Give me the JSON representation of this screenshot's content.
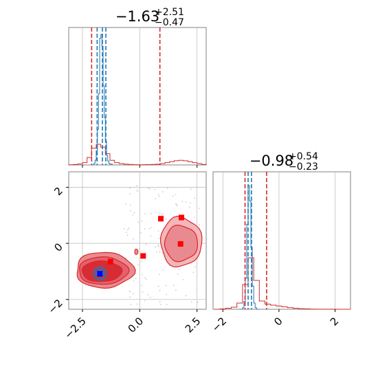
{
  "colors": {
    "red": "#d62728",
    "red_fill": "#e98a90",
    "red_dark_fill": "#d62d35",
    "red_marker": "#ff0000",
    "blue": "#1f77b4",
    "blue_marker": "#0000ff",
    "grid": "#bfbfbf",
    "frame": "#808080",
    "scatter": "#cccccc"
  },
  "chart_data": [
    {
      "type": "histogram",
      "panel": "top-left marginal (parameter 1)",
      "title": {
        "main": "−1.63",
        "sup": "+2.51",
        "sub": "−0.47"
      },
      "xlim": [
        -3.1,
        2.9
      ],
      "grid": true,
      "vlines": {
        "red_dashed": [
          -2.1,
          0.88
        ],
        "blue_dashed": [
          -1.86,
          -1.63,
          -1.48
        ]
      },
      "series": [
        {
          "color": "red",
          "step_x": [
            -3.1,
            -2.9,
            -2.7,
            -2.5,
            -2.3,
            -2.1,
            -1.9,
            -1.7,
            -1.5,
            -1.3,
            -1.1,
            -0.9,
            -0.7,
            -0.5,
            -0.3,
            -0.1,
            0.1,
            0.3,
            0.5,
            0.7,
            0.9,
            1.1,
            1.3,
            1.5,
            1.7,
            1.9,
            2.1,
            2.3,
            2.5,
            2.7,
            2.9
          ],
          "counts": [
            0.2,
            0.5,
            1.0,
            2.5,
            8.0,
            18.0,
            22.0,
            19.0,
            12.0,
            5.0,
            2.5,
            1.5,
            0.8,
            0.5,
            0.3,
            0.2,
            0.3,
            0.4,
            0.6,
            0.8,
            1.5,
            2.5,
            3.5,
            4.5,
            5.0,
            4.5,
            3.5,
            2.5,
            1.5,
            0.6
          ]
        },
        {
          "color": "blue",
          "step_x": [
            -2.1,
            -2.0,
            -1.95,
            -1.9,
            -1.85,
            -1.8,
            -1.75,
            -1.7,
            -1.65,
            -1.6,
            -1.55,
            -1.5,
            -1.45,
            -1.4,
            -1.35,
            -1.3,
            -1.2
          ],
          "counts": [
            0,
            2,
            6,
            18,
            45,
            90,
            160,
            165,
            150,
            100,
            60,
            30,
            12,
            5,
            2,
            1
          ]
        }
      ]
    },
    {
      "type": "contour",
      "panel": "bottom-left joint (parameter 1 vs parameter 2)",
      "xlim": [
        -3.1,
        2.9
      ],
      "ylim": [
        -2.35,
        2.55
      ],
      "xticks": [
        "−2.5",
        "0.0",
        "2.5"
      ],
      "yticks": [
        "2",
        "0",
        "−2"
      ],
      "xtick_values": [
        -2.5,
        0.0,
        2.5
      ],
      "ytick_values": [
        2,
        0,
        -2
      ],
      "grid": true,
      "red_markers": [
        [
          -1.74,
          -1.1
        ],
        [
          -1.28,
          -0.65
        ],
        [
          0.15,
          -0.45
        ],
        [
          0.92,
          0.88
        ],
        [
          1.82,
          0.92
        ],
        [
          1.78,
          -0.02
        ]
      ],
      "blue_marker": [
        -1.74,
        -1.08
      ]
    },
    {
      "type": "histogram",
      "panel": "bottom-right marginal (parameter 2)",
      "title": {
        "main": "−0.98",
        "sup": "+0.54",
        "sub": "−0.23"
      },
      "xlim": [
        -2.35,
        2.55
      ],
      "xticks": [
        "−2",
        "0",
        "2"
      ],
      "xtick_values": [
        -2,
        0,
        2
      ],
      "grid": true,
      "vlines": {
        "red_dashed": [
          -1.21,
          -0.44
        ],
        "blue_dashed": [
          -1.1,
          -0.98
        ]
      },
      "series": [
        {
          "color": "red",
          "step_x": [
            -2.3,
            -2.1,
            -1.9,
            -1.7,
            -1.5,
            -1.3,
            -1.1,
            -0.9,
            -0.7,
            -0.5,
            -0.3,
            -0.1,
            0.1,
            0.3,
            0.5,
            0.7,
            0.9,
            1.1,
            1.3,
            1.5,
            1.7,
            1.9,
            2.1,
            2.3,
            2.55
          ],
          "counts": [
            0,
            0.2,
            0.5,
            1.0,
            3.0,
            12.0,
            25.0,
            14.0,
            4.0,
            2.5,
            2.0,
            1.6,
            1.2,
            0.8,
            0.5,
            0.3,
            0.2,
            0.1,
            0.05,
            0.05,
            0.02,
            0.02,
            0.01,
            0
          ]
        },
        {
          "color": "blue",
          "step_x": [
            -1.4,
            -1.3,
            -1.25,
            -1.2,
            -1.15,
            -1.1,
            -1.05,
            -1.0,
            -0.95,
            -0.9,
            -0.85,
            -0.8,
            -0.7
          ],
          "counts": [
            0,
            2,
            10,
            40,
            110,
            160,
            140,
            80,
            30,
            8,
            2,
            0
          ]
        }
      ]
    }
  ]
}
